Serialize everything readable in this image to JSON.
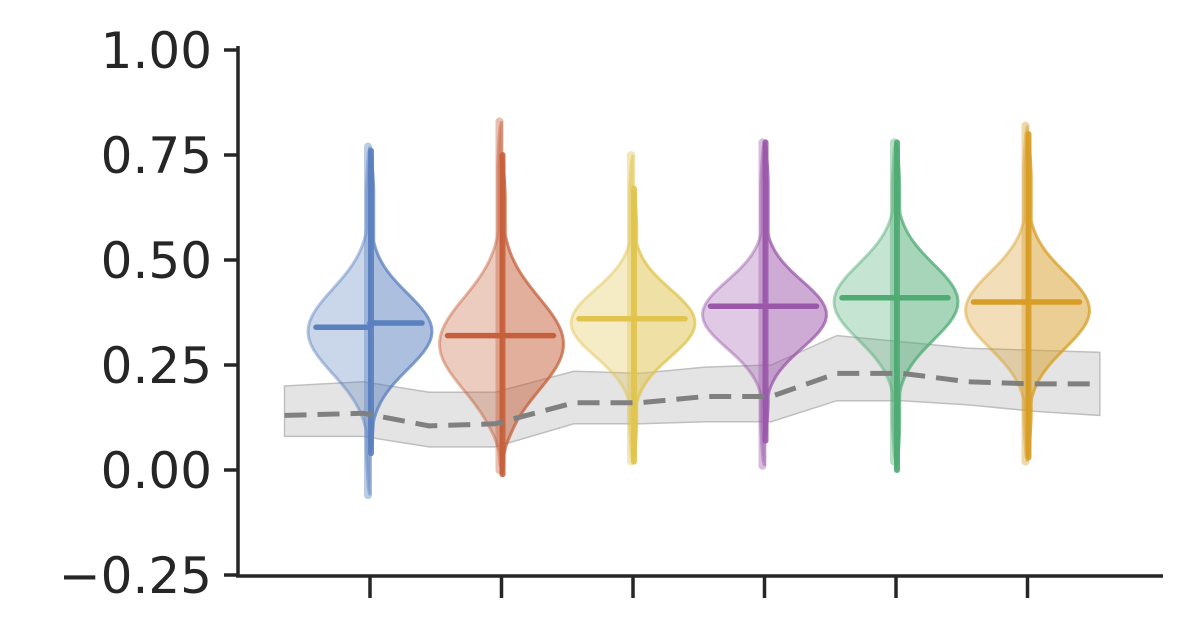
{
  "chart_data": {
    "type": "violin",
    "title": "",
    "xlabel": "",
    "ylabel": "",
    "ylim": [
      -0.25,
      1.0
    ],
    "yticks": [
      -0.25,
      0.0,
      0.25,
      0.5,
      0.75,
      1.0
    ],
    "ytick_labels": [
      "−0.25",
      "0.00",
      "0.25",
      "0.50",
      "0.75",
      "1.00"
    ],
    "xticks_count": 6,
    "grid": false,
    "legend": "none",
    "groups": [
      {
        "color": "#5b80bf",
        "left": {
          "min": -0.06,
          "max": 0.77,
          "median": 0.34,
          "mode": 0.33,
          "spread": 0.1
        },
        "right": {
          "min": 0.04,
          "max": 0.76,
          "median": 0.35,
          "mode": 0.33,
          "spread": 0.09
        }
      },
      {
        "color": "#c6603c",
        "left": {
          "min": 0.0,
          "max": 0.83,
          "median": 0.32,
          "mode": 0.3,
          "spread": 0.11
        },
        "right": {
          "min": -0.01,
          "max": 0.75,
          "median": 0.32,
          "mode": 0.3,
          "spread": 0.11
        }
      },
      {
        "color": "#e0c44e",
        "left": {
          "min": 0.02,
          "max": 0.75,
          "median": 0.36,
          "mode": 0.35,
          "spread": 0.08
        },
        "right": {
          "min": 0.02,
          "max": 0.67,
          "median": 0.36,
          "mode": 0.35,
          "spread": 0.08
        }
      },
      {
        "color": "#9b58ab",
        "left": {
          "min": 0.01,
          "max": 0.78,
          "median": 0.39,
          "mode": 0.37,
          "spread": 0.08
        },
        "right": {
          "min": 0.07,
          "max": 0.78,
          "median": 0.39,
          "mode": 0.37,
          "spread": 0.08
        }
      },
      {
        "color": "#4fab73",
        "left": {
          "min": 0.02,
          "max": 0.78,
          "median": 0.41,
          "mode": 0.4,
          "spread": 0.09
        },
        "right": {
          "min": 0.0,
          "max": 0.78,
          "median": 0.41,
          "mode": 0.4,
          "spread": 0.09
        }
      },
      {
        "color": "#d79d27",
        "left": {
          "min": 0.02,
          "max": 0.82,
          "median": 0.4,
          "mode": 0.38,
          "spread": 0.09
        },
        "right": {
          "min": 0.03,
          "max": 0.8,
          "median": 0.4,
          "mode": 0.38,
          "spread": 0.09
        }
      }
    ],
    "baseline": {
      "color": "#808080",
      "style": "dashed",
      "band_color": "#bfbfbf",
      "x": [
        -0.65,
        -0.05,
        0.45,
        0.95,
        1.55,
        2.05,
        2.55,
        3.05,
        3.55,
        4.05,
        4.55,
        5.05,
        5.55
      ],
      "y": [
        0.13,
        0.135,
        0.105,
        0.11,
        0.16,
        0.16,
        0.175,
        0.175,
        0.23,
        0.23,
        0.21,
        0.205,
        0.205
      ],
      "lower": [
        0.08,
        0.08,
        0.055,
        0.055,
        0.11,
        0.11,
        0.115,
        0.115,
        0.165,
        0.165,
        0.155,
        0.14,
        0.13
      ],
      "upper": [
        0.2,
        0.21,
        0.185,
        0.185,
        0.235,
        0.23,
        0.245,
        0.25,
        0.32,
        0.305,
        0.29,
        0.285,
        0.28
      ]
    }
  }
}
